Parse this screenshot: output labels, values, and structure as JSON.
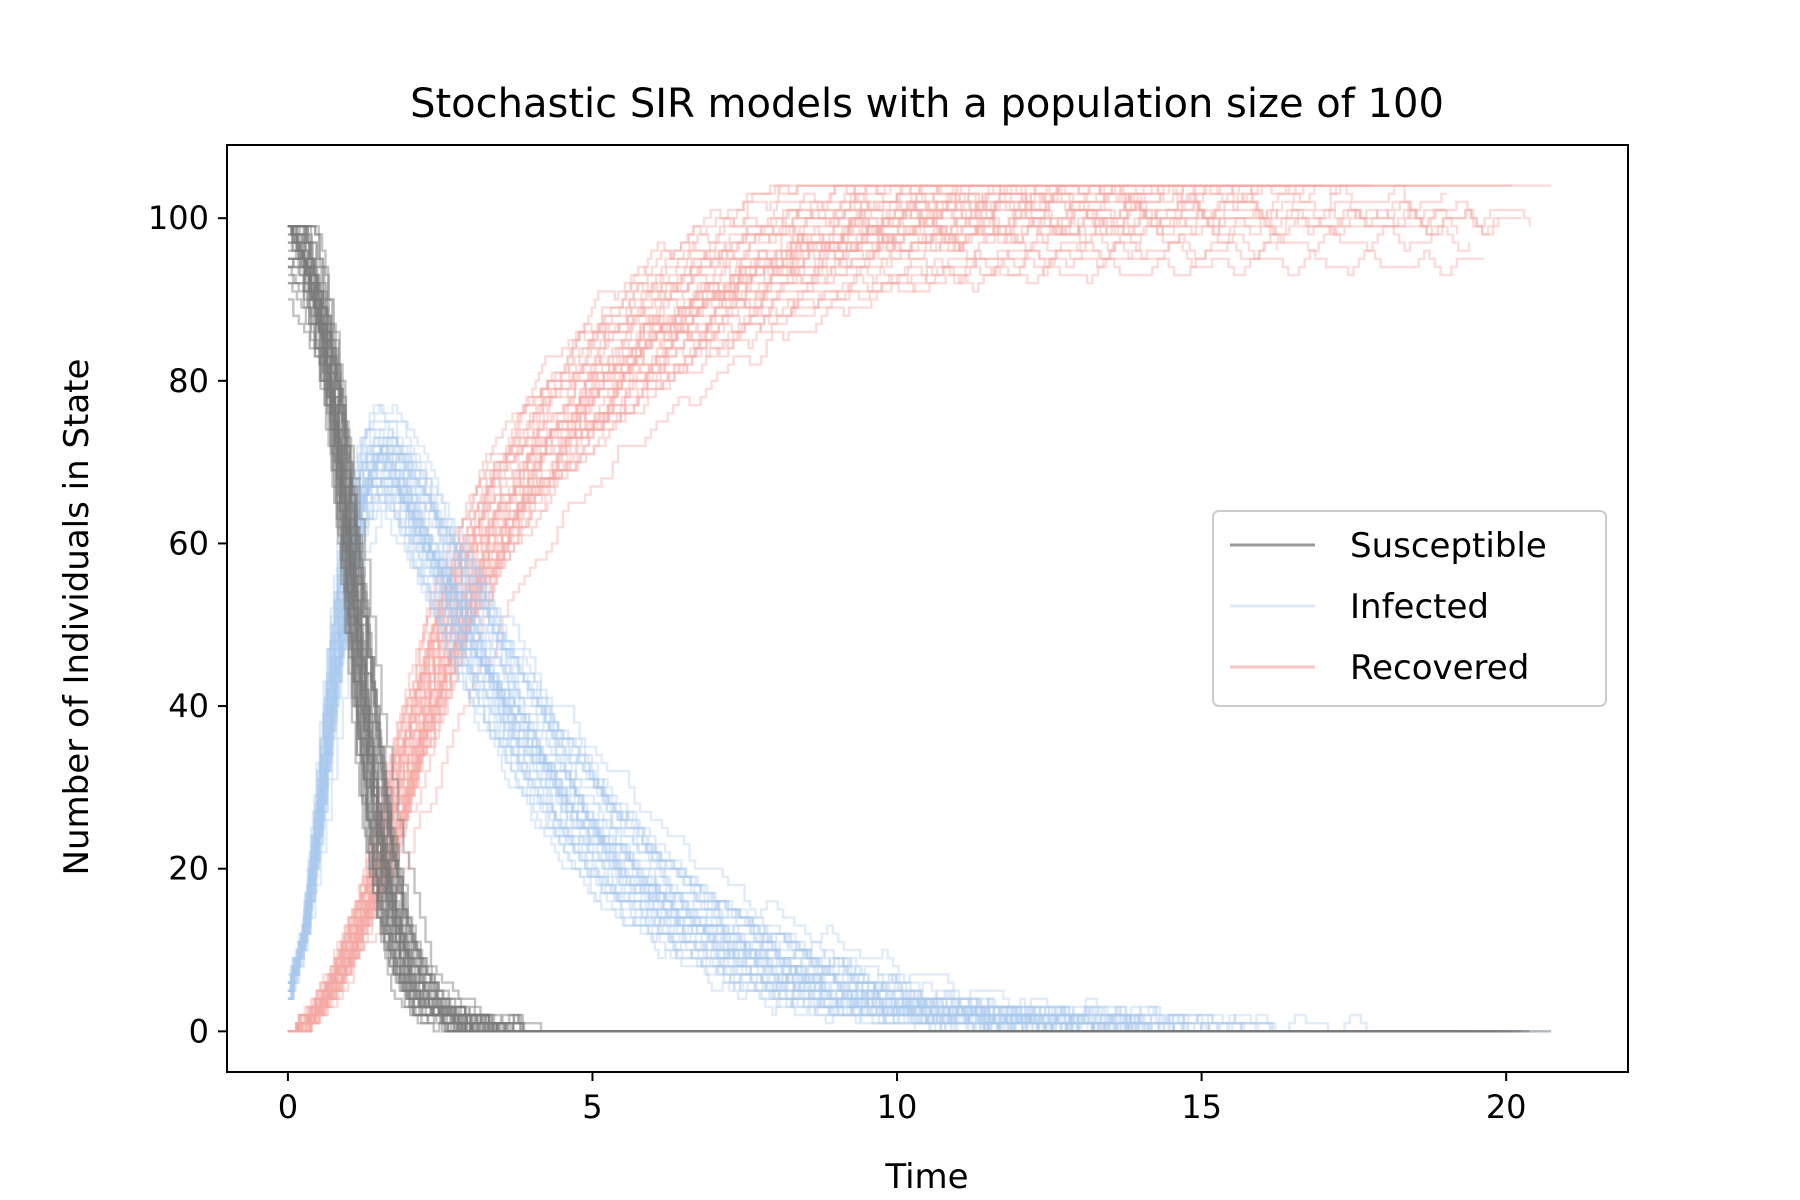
{
  "chart_data": {
    "type": "line",
    "title": "Stochastic SIR models with a population size of 100",
    "xlabel": "Time",
    "ylabel": "Number of Individuals in State",
    "xlim": [
      -1,
      22
    ],
    "ylim": [
      -5,
      109
    ],
    "xticks": [
      0,
      5,
      10,
      15,
      20
    ],
    "yticks": [
      0,
      20,
      40,
      60,
      80,
      100
    ],
    "grid": false,
    "legend_position": "center-right",
    "runs": 40,
    "series": [
      {
        "name": "Susceptible",
        "color": "#7a7a7a",
        "alpha": 0.45,
        "mean_curve": {
          "x": [
            0,
            0.1,
            0.25,
            0.5,
            0.75,
            1.0,
            1.25,
            1.5,
            1.75,
            2.0,
            2.25,
            2.5,
            3.0,
            3.5,
            4.0,
            5.0,
            6.0,
            8.0,
            10.0,
            14.0,
            18.0,
            21.0
          ],
          "y": [
            99,
            98,
            96,
            89,
            78,
            60,
            40,
            24,
            13,
            7,
            4,
            2.3,
            0.9,
            0.4,
            0.15,
            0,
            0,
            0,
            0,
            0,
            0,
            0
          ]
        }
      },
      {
        "name": "Infected",
        "color": "#aac8ef",
        "alpha": 0.35,
        "mean_curve": {
          "x": [
            0,
            0.25,
            0.5,
            0.75,
            1.0,
            1.25,
            1.5,
            1.75,
            2.0,
            2.5,
            3.0,
            3.5,
            4.0,
            5.0,
            6.0,
            7.0,
            8.0,
            9.0,
            10.0,
            12.0,
            14.0,
            16.0,
            18.0,
            21.0
          ],
          "y": [
            5,
            12,
            27,
            45,
            60,
            68,
            71,
            70,
            66,
            58,
            50,
            42,
            36,
            25,
            17,
            12,
            8,
            5,
            3,
            1.5,
            0.6,
            0.2,
            0,
            0
          ]
        }
      },
      {
        "name": "Recovered",
        "color": "#f4a8a3",
        "alpha": 0.4,
        "mean_curve": {
          "x": [
            0,
            0.25,
            0.5,
            0.75,
            1.0,
            1.5,
            2.0,
            2.5,
            3.0,
            3.5,
            4.0,
            5.0,
            6.0,
            7.0,
            8.0,
            9.0,
            10.0,
            11.0,
            12.0,
            14.0,
            16.0,
            18.0,
            21.0
          ],
          "y": [
            0,
            1,
            3,
            6,
            10,
            20,
            34,
            46,
            56,
            64,
            70,
            79,
            86,
            91,
            95,
            98,
            100,
            101,
            102,
            103,
            103.5,
            104,
            104
          ]
        }
      }
    ]
  }
}
